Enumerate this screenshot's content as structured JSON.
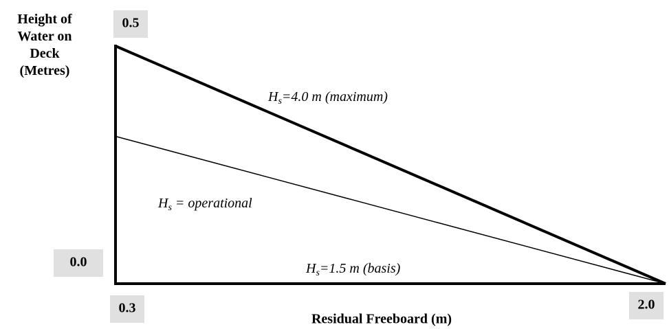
{
  "chart_data": {
    "type": "line",
    "xlabel": "Residual Freeboard (m)",
    "ylabel": "Height of Water on Deck (Metres)",
    "x": [
      0.3,
      2.0
    ],
    "series": [
      {
        "name": "Hs=4.0 m (maximum)",
        "color": "#000000",
        "values": [
          0.5,
          0
        ]
      },
      {
        "name": "Hs = operational",
        "color": "#000000",
        "values": [
          0.31,
          0
        ]
      },
      {
        "name": "Hs=1.5 m (basis)",
        "color": "#000000",
        "values": [
          0,
          0
        ]
      }
    ],
    "xlim": [
      0.3,
      2.0
    ],
    "ylim": [
      0,
      0.5
    ],
    "xticks": [
      0.3,
      {
        "value": 2,
        "label": "2.0"
      }
    ],
    "yticks": [
      {
        "value": 0,
        "label": "0.0"
      },
      0.5
    ],
    "grid": false
  }
}
